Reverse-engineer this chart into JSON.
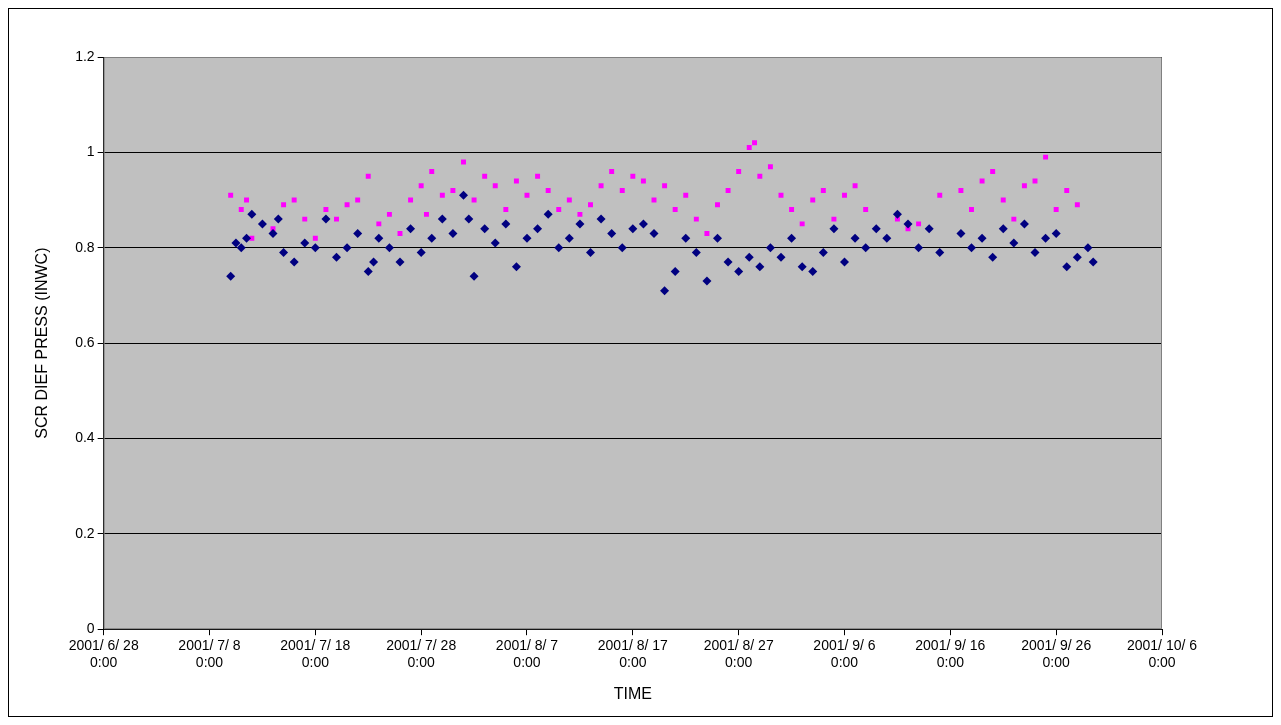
{
  "chart_data": {
    "type": "scatter",
    "xlabel": "TIME",
    "ylabel": "SCR DIEF PRESS (INWC)",
    "xlim": [
      "2001-06-28",
      "2001-10-06"
    ],
    "xticks": [
      {
        "value": "2001-06-28",
        "label": "2001/ 6/ 28\n0:00"
      },
      {
        "value": "2001-07-08",
        "label": "2001/ 7/ 8\n0:00"
      },
      {
        "value": "2001-07-18",
        "label": "2001/ 7/ 18\n0:00"
      },
      {
        "value": "2001-07-28",
        "label": "2001/ 7/ 28\n0:00"
      },
      {
        "value": "2001-08-07",
        "label": "2001/ 8/ 7\n0:00"
      },
      {
        "value": "2001-08-17",
        "label": "2001/ 8/ 17\n0:00"
      },
      {
        "value": "2001-08-27",
        "label": "2001/ 8/ 27\n0:00"
      },
      {
        "value": "2001-09-06",
        "label": "2001/ 9/ 6\n0:00"
      },
      {
        "value": "2001-09-16",
        "label": "2001/ 9/ 16\n0:00"
      },
      {
        "value": "2001-09-26",
        "label": "2001/ 9/ 26\n0:00"
      },
      {
        "value": "2001-10-06",
        "label": "2001/ 10/ 6\n0:00"
      }
    ],
    "ylim": [
      0,
      1.2
    ],
    "yticks": [
      0,
      0.2,
      0.4,
      0.6,
      0.8,
      1,
      1.2
    ],
    "grid": "y",
    "legend": false,
    "series": [
      {
        "color": "#000080",
        "marker": "diamond",
        "x": [
          "2001-07-10",
          "2001-07-10T12:00",
          "2001-07-11",
          "2001-07-11T12:00",
          "2001-07-12",
          "2001-07-13",
          "2001-07-14",
          "2001-07-14T12:00",
          "2001-07-15",
          "2001-07-16",
          "2001-07-17",
          "2001-07-18",
          "2001-07-19",
          "2001-07-20",
          "2001-07-21",
          "2001-07-22",
          "2001-07-23",
          "2001-07-23T12:00",
          "2001-07-24",
          "2001-07-25",
          "2001-07-26",
          "2001-07-27",
          "2001-07-28",
          "2001-07-29",
          "2001-07-30",
          "2001-07-31",
          "2001-08-01",
          "2001-08-01T12:00",
          "2001-08-02",
          "2001-08-03",
          "2001-08-04",
          "2001-08-05",
          "2001-08-06",
          "2001-08-07",
          "2001-08-08",
          "2001-08-09",
          "2001-08-10",
          "2001-08-11",
          "2001-08-12",
          "2001-08-13",
          "2001-08-14",
          "2001-08-15",
          "2001-08-16",
          "2001-08-17",
          "2001-08-18",
          "2001-08-19",
          "2001-08-20",
          "2001-08-21",
          "2001-08-22",
          "2001-08-23",
          "2001-08-24",
          "2001-08-25",
          "2001-08-26",
          "2001-08-27",
          "2001-08-28",
          "2001-08-29",
          "2001-08-30",
          "2001-08-31",
          "2001-09-01",
          "2001-09-02",
          "2001-09-03",
          "2001-09-04",
          "2001-09-05",
          "2001-09-06",
          "2001-09-07",
          "2001-09-08",
          "2001-09-09",
          "2001-09-10",
          "2001-09-11",
          "2001-09-12",
          "2001-09-13",
          "2001-09-14",
          "2001-09-15",
          "2001-09-17",
          "2001-09-18",
          "2001-09-19",
          "2001-09-20",
          "2001-09-21",
          "2001-09-22",
          "2001-09-23",
          "2001-09-24",
          "2001-09-25",
          "2001-09-26",
          "2001-09-27",
          "2001-09-28",
          "2001-09-29",
          "2001-09-29T12:00"
        ],
        "values": [
          0.74,
          0.81,
          0.8,
          0.82,
          0.87,
          0.85,
          0.83,
          0.86,
          0.79,
          0.77,
          0.81,
          0.8,
          0.86,
          0.78,
          0.8,
          0.83,
          0.75,
          0.77,
          0.82,
          0.8,
          0.77,
          0.84,
          0.79,
          0.82,
          0.86,
          0.83,
          0.91,
          0.86,
          0.74,
          0.84,
          0.81,
          0.85,
          0.76,
          0.82,
          0.84,
          0.87,
          0.8,
          0.82,
          0.85,
          0.79,
          0.86,
          0.83,
          0.8,
          0.84,
          0.85,
          0.83,
          0.71,
          0.75,
          0.82,
          0.79,
          0.73,
          0.82,
          0.77,
          0.75,
          0.78,
          0.76,
          0.8,
          0.78,
          0.82,
          0.76,
          0.75,
          0.79,
          0.84,
          0.77,
          0.82,
          0.8,
          0.84,
          0.82,
          0.87,
          0.85,
          0.8,
          0.84,
          0.79,
          0.83,
          0.8,
          0.82,
          0.78,
          0.84,
          0.81,
          0.85,
          0.79,
          0.82,
          0.83,
          0.76,
          0.78,
          0.8,
          0.77
        ]
      },
      {
        "color": "#ff00ff",
        "marker": "square",
        "x": [
          "2001-07-10",
          "2001-07-11",
          "2001-07-11T12:00",
          "2001-07-12",
          "2001-07-14",
          "2001-07-15",
          "2001-07-16",
          "2001-07-17",
          "2001-07-18",
          "2001-07-19",
          "2001-07-20",
          "2001-07-21",
          "2001-07-22",
          "2001-07-23",
          "2001-07-24",
          "2001-07-25",
          "2001-07-26",
          "2001-07-27",
          "2001-07-28",
          "2001-07-28T12:00",
          "2001-07-29",
          "2001-07-30",
          "2001-07-31",
          "2001-08-01",
          "2001-08-02",
          "2001-08-03",
          "2001-08-04",
          "2001-08-05",
          "2001-08-06",
          "2001-08-07",
          "2001-08-08",
          "2001-08-09",
          "2001-08-10",
          "2001-08-11",
          "2001-08-12",
          "2001-08-13",
          "2001-08-14",
          "2001-08-15",
          "2001-08-16",
          "2001-08-17",
          "2001-08-18",
          "2001-08-19",
          "2001-08-20",
          "2001-08-21",
          "2001-08-22",
          "2001-08-23",
          "2001-08-24",
          "2001-08-25",
          "2001-08-26",
          "2001-08-27",
          "2001-08-28",
          "2001-08-28T12:00",
          "2001-08-29",
          "2001-08-30",
          "2001-08-31",
          "2001-09-01",
          "2001-09-02",
          "2001-09-03",
          "2001-09-04",
          "2001-09-05",
          "2001-09-06",
          "2001-09-07",
          "2001-09-08",
          "2001-09-11",
          "2001-09-12",
          "2001-09-13",
          "2001-09-15",
          "2001-09-17",
          "2001-09-18",
          "2001-09-19",
          "2001-09-20",
          "2001-09-21",
          "2001-09-22",
          "2001-09-23",
          "2001-09-24",
          "2001-09-25",
          "2001-09-26",
          "2001-09-27",
          "2001-09-28"
        ],
        "values": [
          0.91,
          0.88,
          0.9,
          0.82,
          0.84,
          0.89,
          0.9,
          0.86,
          0.82,
          0.88,
          0.86,
          0.89,
          0.9,
          0.95,
          0.85,
          0.87,
          0.83,
          0.9,
          0.93,
          0.87,
          0.96,
          0.91,
          0.92,
          0.98,
          0.9,
          0.95,
          0.93,
          0.88,
          0.94,
          0.91,
          0.95,
          0.92,
          0.88,
          0.9,
          0.87,
          0.89,
          0.93,
          0.96,
          0.92,
          0.95,
          0.94,
          0.9,
          0.93,
          0.88,
          0.91,
          0.86,
          0.83,
          0.89,
          0.92,
          0.96,
          1.01,
          1.02,
          0.95,
          0.97,
          0.91,
          0.88,
          0.85,
          0.9,
          0.92,
          0.86,
          0.91,
          0.93,
          0.88,
          0.86,
          0.84,
          0.85,
          0.91,
          0.92,
          0.88,
          0.94,
          0.96,
          0.9,
          0.86,
          0.93,
          0.94,
          0.99,
          0.88,
          0.92,
          0.89
        ]
      }
    ]
  }
}
